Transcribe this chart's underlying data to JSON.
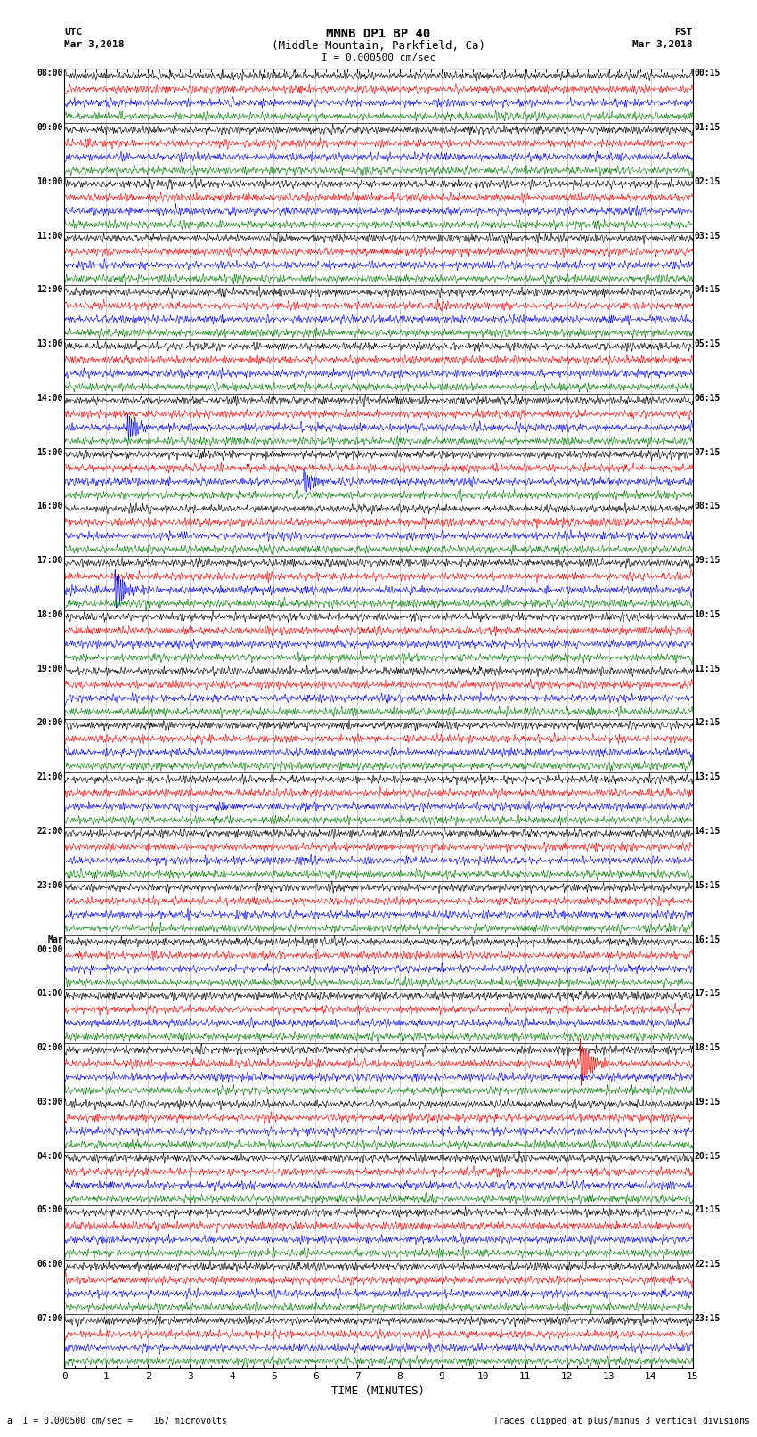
{
  "title_line1": "MMNB DP1 BP 40",
  "title_line2": "(Middle Mountain, Parkfield, Ca)",
  "scale_text": "I = 0.000500 cm/sec",
  "bottom_label1": "a  I = 0.000500 cm/sec =    167 microvolts",
  "bottom_label2": "Traces clipped at plus/minus 3 vertical divisions",
  "xlabel": "TIME (MINUTES)",
  "colors": [
    "black",
    "red",
    "blue",
    "green"
  ],
  "bg_color": "white",
  "left_times": [
    "08:00",
    "09:00",
    "10:00",
    "11:00",
    "12:00",
    "13:00",
    "14:00",
    "15:00",
    "16:00",
    "17:00",
    "18:00",
    "19:00",
    "20:00",
    "21:00",
    "22:00",
    "23:00",
    "Mar\n00:00",
    "01:00",
    "02:00",
    "03:00",
    "04:00",
    "05:00",
    "06:00",
    "07:00"
  ],
  "right_times": [
    "00:15",
    "01:15",
    "02:15",
    "03:15",
    "04:15",
    "05:15",
    "06:15",
    "07:15",
    "08:15",
    "09:15",
    "10:15",
    "11:15",
    "12:15",
    "13:15",
    "14:15",
    "15:15",
    "16:15",
    "17:15",
    "18:15",
    "19:15",
    "20:15",
    "21:15",
    "22:15",
    "23:15"
  ],
  "num_hour_rows": 24,
  "traces_per_hour": 4,
  "minutes_per_row": 15,
  "noise_scale": 0.28,
  "fig_width": 8.5,
  "fig_height": 16.13
}
